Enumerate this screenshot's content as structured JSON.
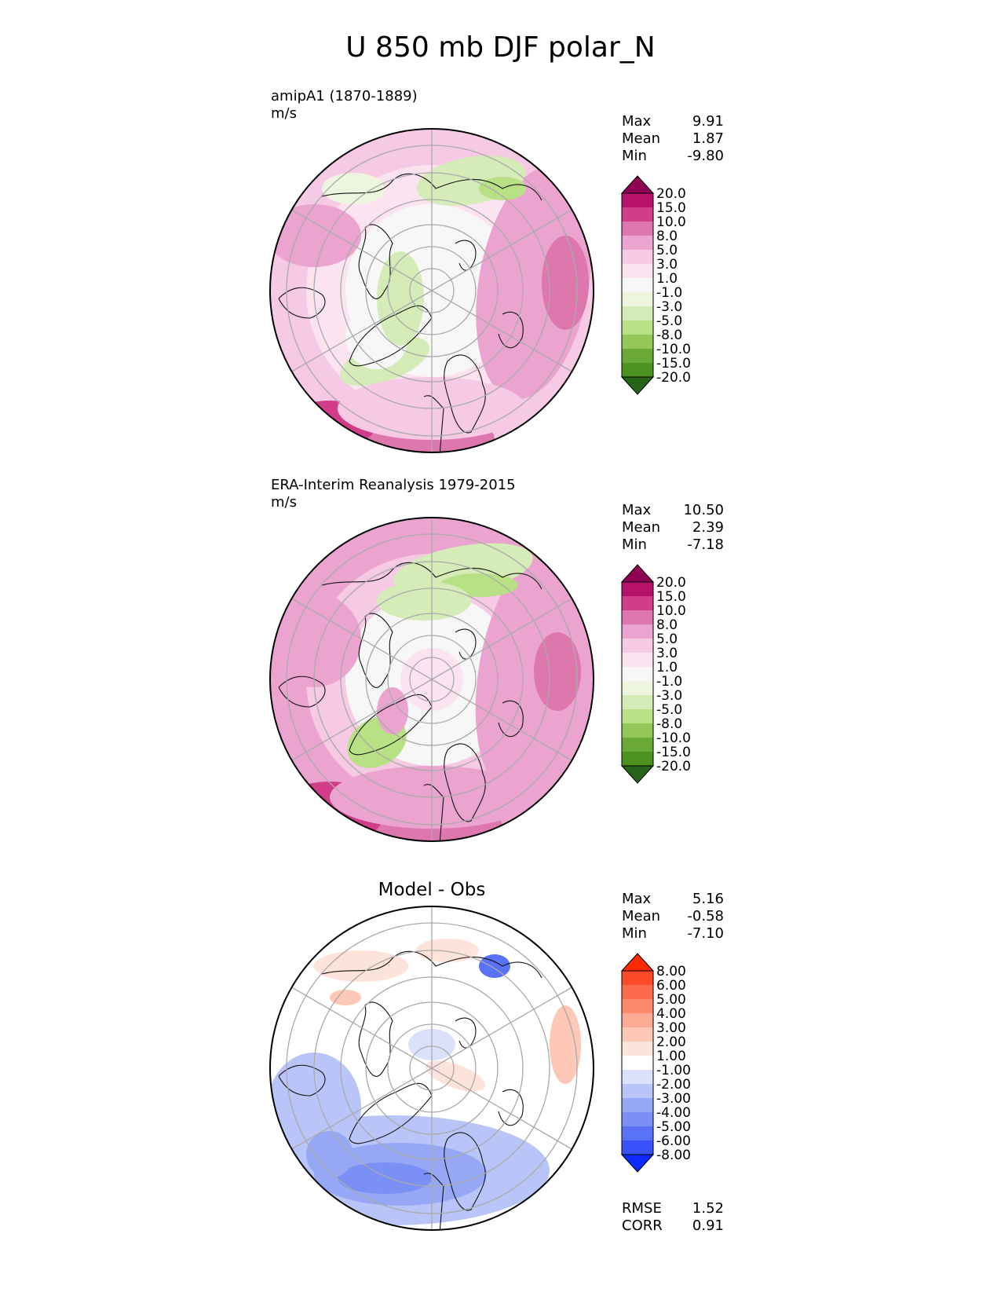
{
  "figure": {
    "title": "U 850 mb DJF polar_N"
  },
  "panels": [
    {
      "id": "model",
      "title": "amipA1 (1870-1889)",
      "units": "m/s",
      "stats": [
        {
          "label": "Max",
          "value": "9.91"
        },
        {
          "label": "Mean",
          "value": "1.87"
        },
        {
          "label": "Min",
          "value": "-9.80"
        }
      ],
      "colorbar": {
        "labels": [
          "20.0",
          "15.0",
          "10.0",
          "8.0",
          "5.0",
          "3.0",
          "1.0",
          "-1.0",
          "-3.0",
          "-5.0",
          "-8.0",
          "-10.0",
          "-15.0",
          "-20.0"
        ],
        "colors": [
          "#8e0152",
          "#b6126b",
          "#d23d8a",
          "#de77ae",
          "#eba4cf",
          "#f6c9e4",
          "#fbe3f0",
          "#f7f7f7",
          "#edf5de",
          "#d6ecb8",
          "#b8e186",
          "#93c75a",
          "#6aa837",
          "#4d9221",
          "#276419"
        ]
      }
    },
    {
      "id": "obs",
      "title": "ERA-Interim Reanalysis 1979-2015",
      "units": "m/s",
      "stats": [
        {
          "label": "Max",
          "value": "10.50"
        },
        {
          "label": "Mean",
          "value": "2.39"
        },
        {
          "label": "Min",
          "value": "-7.18"
        }
      ],
      "colorbar": {
        "labels": [
          "20.0",
          "15.0",
          "10.0",
          "8.0",
          "5.0",
          "3.0",
          "1.0",
          "-1.0",
          "-3.0",
          "-5.0",
          "-8.0",
          "-10.0",
          "-15.0",
          "-20.0"
        ],
        "colors": [
          "#8e0152",
          "#b6126b",
          "#d23d8a",
          "#de77ae",
          "#eba4cf",
          "#f6c9e4",
          "#fbe3f0",
          "#f7f7f7",
          "#edf5de",
          "#d6ecb8",
          "#b8e186",
          "#93c75a",
          "#6aa837",
          "#4d9221",
          "#276419"
        ]
      }
    },
    {
      "id": "diff",
      "title": "Model - Obs",
      "stats": [
        {
          "label": "Max",
          "value": "5.16"
        },
        {
          "label": "Mean",
          "value": "-0.58"
        },
        {
          "label": "Min",
          "value": "-7.10"
        }
      ],
      "colorbar": {
        "labels": [
          "8.00",
          "6.00",
          "5.00",
          "4.00",
          "3.00",
          "2.00",
          "1.00",
          "-1.00",
          "-2.00",
          "-3.00",
          "-4.00",
          "-5.00",
          "-6.00",
          "-8.00"
        ],
        "colors": [
          "#ff2a00",
          "#fd4a2a",
          "#fb6a4a",
          "#fc8a6a",
          "#fcaa93",
          "#fdc8b6",
          "#fee3da",
          "#ffffff",
          "#dbe1fb",
          "#b9c5f8",
          "#96a8f5",
          "#7a90f5",
          "#5a72f7",
          "#3a52fa",
          "#0a2aff"
        ]
      },
      "extra_stats": [
        {
          "label": "RMSE",
          "value": "1.52"
        },
        {
          "label": "CORR",
          "value": "0.91"
        }
      ]
    }
  ]
}
